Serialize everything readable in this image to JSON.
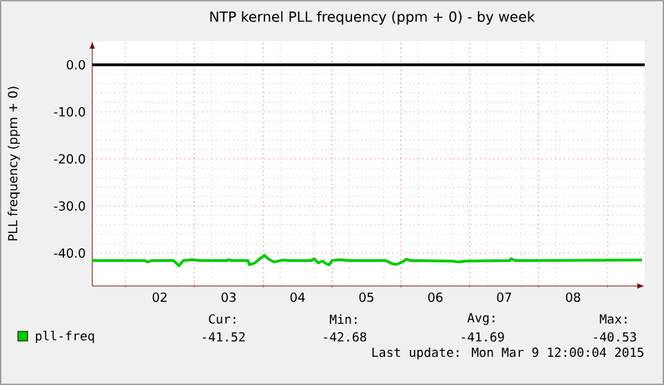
{
  "chart_data": {
    "type": "line",
    "title": "NTP kernel PLL frequency (ppm + 0) - by week",
    "ylabel": "PLL frequency (ppm + 0)",
    "xlim": [
      1.52,
      9.54
    ],
    "ylim": [
      -47,
      5
    ],
    "xticks": [
      {
        "value": 2,
        "label": null
      },
      {
        "value": 2.5,
        "label": "02"
      },
      {
        "value": 3,
        "label": null
      },
      {
        "value": 3.5,
        "label": "03"
      },
      {
        "value": 4,
        "label": null
      },
      {
        "value": 4.5,
        "label": "04"
      },
      {
        "value": 5,
        "label": null
      },
      {
        "value": 5.5,
        "label": "05"
      },
      {
        "value": 6,
        "label": null
      },
      {
        "value": 6.5,
        "label": "06"
      },
      {
        "value": 7,
        "label": null
      },
      {
        "value": 7.5,
        "label": "07"
      },
      {
        "value": 8,
        "label": null
      },
      {
        "value": 8.5,
        "label": "08"
      },
      {
        "value": 9,
        "label": null
      }
    ],
    "yticks": [
      {
        "value": 0,
        "label": "0.0"
      },
      {
        "value": -10,
        "label": "-10.0"
      },
      {
        "value": -20,
        "label": "-20.0"
      },
      {
        "value": -30,
        "label": "-30.0"
      },
      {
        "value": -40,
        "label": "-40.0"
      }
    ],
    "grid": true,
    "legend": "bottom left",
    "marker": "none",
    "line_style": "solid",
    "ref_lines": [
      {
        "axis": "y",
        "value": 0,
        "color": "#000000"
      }
    ],
    "series": [
      {
        "name": "pll-freq",
        "color": "#00cc00",
        "x": [
          1.52,
          2.28,
          2.32,
          2.38,
          2.7,
          2.78,
          2.84,
          2.98,
          3.08,
          3.48,
          3.5,
          3.54,
          3.78,
          3.8,
          3.88,
          3.96,
          4.02,
          4.08,
          4.16,
          4.28,
          4.38,
          4.7,
          4.74,
          4.8,
          4.86,
          4.92,
          4.96,
          5.0,
          5.12,
          5.24,
          5.78,
          5.88,
          5.94,
          6.02,
          6.08,
          6.14,
          6.74,
          6.84,
          6.94,
          7.58,
          7.6,
          7.66,
          9.5
        ],
        "values": [
          -41.6,
          -41.6,
          -41.9,
          -41.6,
          -41.6,
          -42.7,
          -41.6,
          -41.4,
          -41.6,
          -41.6,
          -41.4,
          -41.6,
          -41.6,
          -42.5,
          -42.1,
          -41.1,
          -40.5,
          -41.3,
          -41.9,
          -41.5,
          -41.6,
          -41.6,
          -41.2,
          -42.1,
          -41.7,
          -42.3,
          -42.5,
          -41.6,
          -41.4,
          -41.6,
          -41.6,
          -42.3,
          -42.4,
          -41.9,
          -41.3,
          -41.6,
          -41.7,
          -41.9,
          -41.7,
          -41.6,
          -41.2,
          -41.6,
          -41.5
        ]
      }
    ],
    "annotations": [
      "Cur:",
      "-41.52",
      "Min:",
      "-42.68",
      "Avg:",
      "-41.69",
      "Max:",
      "-40.53",
      "Last update: Mon Mar  9 12:00:04 2015"
    ]
  }
}
